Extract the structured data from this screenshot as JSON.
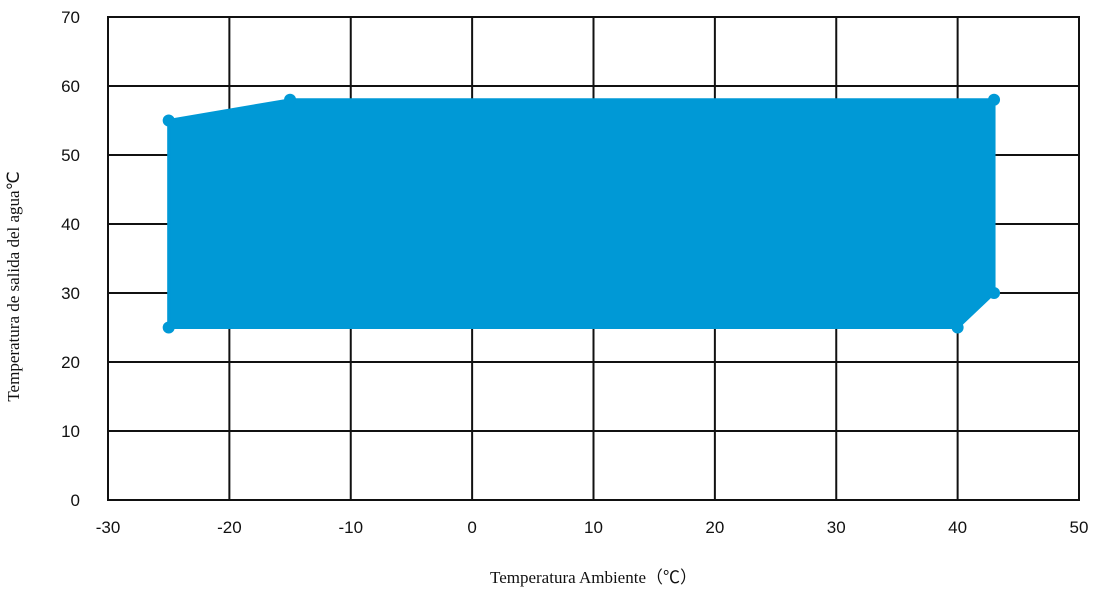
{
  "chart_data": {
    "type": "area",
    "xlabel": "Temperatura Ambiente（℃）",
    "ylabel": "Temperatura de salida del agua℃",
    "xlim": [
      -30,
      50
    ],
    "ylim": [
      0,
      70
    ],
    "x_ticks": [
      -30,
      -20,
      -10,
      0,
      10,
      20,
      30,
      40,
      50
    ],
    "y_ticks": [
      0,
      10,
      20,
      30,
      40,
      50,
      60,
      70
    ],
    "grid": true,
    "fill_color": "#0099d6",
    "series": [
      {
        "points": [
          {
            "x": -25,
            "y": 25
          },
          {
            "x": -25,
            "y": 55
          },
          {
            "x": -15,
            "y": 58
          },
          {
            "x": 43,
            "y": 58
          },
          {
            "x": 43,
            "y": 30
          },
          {
            "x": 40,
            "y": 25
          }
        ]
      }
    ]
  }
}
